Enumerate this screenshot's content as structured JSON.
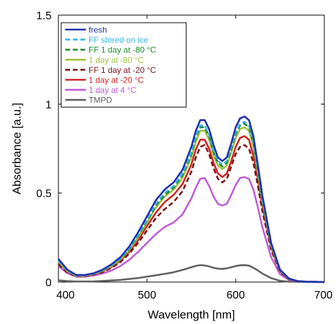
{
  "chart_data": {
    "type": "line",
    "title": "",
    "xlabel": "Wavelength [nm]",
    "ylabel": "Absorbance [a.u.]",
    "xlim": [
      400,
      700
    ],
    "ylim": [
      0,
      1.5
    ],
    "x_ticks": [
      "400",
      "500",
      "600",
      "700"
    ],
    "y_ticks": [
      "0",
      "0.5",
      "1",
      "1.5"
    ],
    "grid": false,
    "legend_position": "top-left",
    "series": [
      {
        "name": "fresh",
        "color": "#1f2fb0",
        "dash": "solid",
        "x": [
          400,
          410,
          420,
          430,
          440,
          450,
          460,
          470,
          480,
          490,
          500,
          510,
          520,
          530,
          540,
          550,
          555,
          560,
          565,
          570,
          575,
          580,
          585,
          590,
          595,
          600,
          605,
          610,
          615,
          620,
          625,
          630,
          640,
          650,
          660,
          670,
          680,
          690,
          700
        ],
        "y": [
          0.13,
          0.07,
          0.04,
          0.04,
          0.05,
          0.07,
          0.1,
          0.14,
          0.2,
          0.28,
          0.37,
          0.46,
          0.52,
          0.56,
          0.63,
          0.76,
          0.85,
          0.91,
          0.91,
          0.86,
          0.77,
          0.7,
          0.68,
          0.7,
          0.78,
          0.87,
          0.92,
          0.93,
          0.91,
          0.82,
          0.66,
          0.49,
          0.22,
          0.07,
          0.02,
          0.005,
          0.002,
          0.001,
          0
        ]
      },
      {
        "name": "FF stored on ice",
        "color": "#36b3e6",
        "dash": "dashed",
        "x": [
          400,
          410,
          420,
          430,
          440,
          450,
          460,
          470,
          480,
          490,
          500,
          510,
          520,
          530,
          540,
          550,
          555,
          560,
          565,
          570,
          575,
          580,
          585,
          590,
          595,
          600,
          605,
          610,
          615,
          620,
          625,
          630,
          640,
          650,
          660,
          670,
          680,
          690,
          700
        ],
        "y": [
          0.12,
          0.065,
          0.038,
          0.038,
          0.048,
          0.066,
          0.095,
          0.133,
          0.19,
          0.265,
          0.35,
          0.44,
          0.5,
          0.54,
          0.61,
          0.73,
          0.82,
          0.88,
          0.88,
          0.83,
          0.74,
          0.68,
          0.66,
          0.68,
          0.755,
          0.84,
          0.89,
          0.9,
          0.88,
          0.79,
          0.64,
          0.47,
          0.21,
          0.067,
          0.019,
          0.005,
          0.002,
          0.001,
          0
        ]
      },
      {
        "name": "FF 1 day at -80 °C",
        "color": "#1e8a2a",
        "dash": "dashed",
        "x": [
          400,
          410,
          420,
          430,
          440,
          450,
          460,
          470,
          480,
          490,
          500,
          510,
          520,
          530,
          540,
          550,
          555,
          560,
          565,
          570,
          575,
          580,
          585,
          590,
          595,
          600,
          605,
          610,
          615,
          620,
          625,
          630,
          640,
          650,
          660,
          670,
          680,
          690,
          700
        ],
        "y": [
          0.12,
          0.064,
          0.037,
          0.037,
          0.047,
          0.065,
          0.093,
          0.13,
          0.185,
          0.26,
          0.345,
          0.43,
          0.49,
          0.53,
          0.6,
          0.72,
          0.81,
          0.87,
          0.87,
          0.82,
          0.73,
          0.67,
          0.65,
          0.67,
          0.745,
          0.83,
          0.88,
          0.89,
          0.87,
          0.78,
          0.63,
          0.465,
          0.21,
          0.066,
          0.019,
          0.005,
          0.002,
          0.001,
          0
        ]
      },
      {
        "name": "1 day at -80 °C",
        "color": "#9ec23c",
        "dash": "solid",
        "x": [
          400,
          410,
          420,
          430,
          440,
          450,
          460,
          470,
          480,
          490,
          500,
          510,
          520,
          530,
          540,
          550,
          555,
          560,
          565,
          570,
          575,
          580,
          585,
          590,
          595,
          600,
          605,
          610,
          615,
          620,
          625,
          630,
          640,
          650,
          660,
          670,
          680,
          690,
          700
        ],
        "y": [
          0.115,
          0.062,
          0.036,
          0.036,
          0.046,
          0.063,
          0.09,
          0.126,
          0.18,
          0.25,
          0.335,
          0.42,
          0.48,
          0.52,
          0.585,
          0.7,
          0.79,
          0.85,
          0.85,
          0.8,
          0.71,
          0.655,
          0.635,
          0.655,
          0.73,
          0.81,
          0.86,
          0.87,
          0.85,
          0.76,
          0.615,
          0.455,
          0.205,
          0.065,
          0.018,
          0.005,
          0.002,
          0.001,
          0
        ]
      },
      {
        "name": "FF 1 day at -20 °C",
        "color": "#7a1010",
        "dash": "dashed",
        "x": [
          400,
          410,
          420,
          430,
          440,
          450,
          460,
          470,
          480,
          490,
          500,
          510,
          520,
          530,
          540,
          550,
          555,
          560,
          565,
          570,
          575,
          580,
          585,
          590,
          595,
          600,
          605,
          610,
          615,
          620,
          625,
          630,
          640,
          650,
          660,
          670,
          680,
          690,
          700
        ],
        "y": [
          0.1,
          0.055,
          0.033,
          0.033,
          0.042,
          0.057,
          0.08,
          0.112,
          0.16,
          0.22,
          0.29,
          0.36,
          0.41,
          0.45,
          0.51,
          0.62,
          0.7,
          0.76,
          0.77,
          0.72,
          0.64,
          0.58,
          0.56,
          0.58,
          0.65,
          0.72,
          0.76,
          0.77,
          0.75,
          0.67,
          0.54,
          0.4,
          0.18,
          0.058,
          0.016,
          0.004,
          0.002,
          0.001,
          0
        ]
      },
      {
        "name": "1 day at -20 °C",
        "color": "#d42020",
        "dash": "solid",
        "x": [
          400,
          410,
          420,
          430,
          440,
          450,
          460,
          470,
          480,
          490,
          500,
          510,
          520,
          530,
          540,
          550,
          555,
          560,
          565,
          570,
          575,
          580,
          585,
          590,
          595,
          600,
          605,
          610,
          615,
          620,
          625,
          630,
          640,
          650,
          660,
          670,
          680,
          690,
          700
        ],
        "y": [
          0.11,
          0.06,
          0.035,
          0.035,
          0.044,
          0.06,
          0.085,
          0.12,
          0.17,
          0.235,
          0.315,
          0.39,
          0.45,
          0.49,
          0.55,
          0.66,
          0.745,
          0.8,
          0.8,
          0.75,
          0.67,
          0.61,
          0.59,
          0.61,
          0.68,
          0.76,
          0.81,
          0.82,
          0.8,
          0.71,
          0.58,
          0.43,
          0.195,
          0.062,
          0.017,
          0.004,
          0.002,
          0.001,
          0
        ]
      },
      {
        "name": "1 day at 4 °C",
        "color": "#c05ad8",
        "dash": "solid",
        "x": [
          400,
          410,
          420,
          430,
          440,
          450,
          460,
          470,
          480,
          490,
          500,
          510,
          520,
          530,
          540,
          550,
          555,
          560,
          565,
          570,
          575,
          580,
          585,
          590,
          595,
          600,
          605,
          610,
          615,
          620,
          625,
          630,
          640,
          650,
          660,
          670,
          680,
          690,
          700
        ],
        "y": [
          0.09,
          0.05,
          0.03,
          0.03,
          0.037,
          0.048,
          0.065,
          0.09,
          0.125,
          0.17,
          0.22,
          0.27,
          0.31,
          0.335,
          0.38,
          0.47,
          0.53,
          0.58,
          0.585,
          0.54,
          0.48,
          0.44,
          0.43,
          0.44,
          0.49,
          0.545,
          0.585,
          0.59,
          0.58,
          0.52,
          0.42,
          0.31,
          0.14,
          0.044,
          0.012,
          0.003,
          0.001,
          0.0005,
          0
        ]
      },
      {
        "name": "TMPD",
        "color": "#606060",
        "dash": "solid",
        "x": [
          400,
          410,
          420,
          430,
          440,
          450,
          460,
          470,
          480,
          490,
          500,
          510,
          520,
          530,
          540,
          550,
          555,
          560,
          565,
          570,
          575,
          580,
          585,
          590,
          595,
          600,
          605,
          610,
          615,
          620,
          625,
          630,
          640,
          650,
          660,
          670,
          680,
          690,
          700
        ],
        "y": [
          0.01,
          0.005,
          0.003,
          0.003,
          0.004,
          0.006,
          0.009,
          0.012,
          0.017,
          0.023,
          0.03,
          0.038,
          0.046,
          0.055,
          0.068,
          0.083,
          0.091,
          0.095,
          0.093,
          0.088,
          0.08,
          0.075,
          0.074,
          0.077,
          0.083,
          0.09,
          0.094,
          0.095,
          0.092,
          0.08,
          0.065,
          0.048,
          0.022,
          0.007,
          0.002,
          0.001,
          0,
          0,
          0
        ]
      }
    ]
  }
}
